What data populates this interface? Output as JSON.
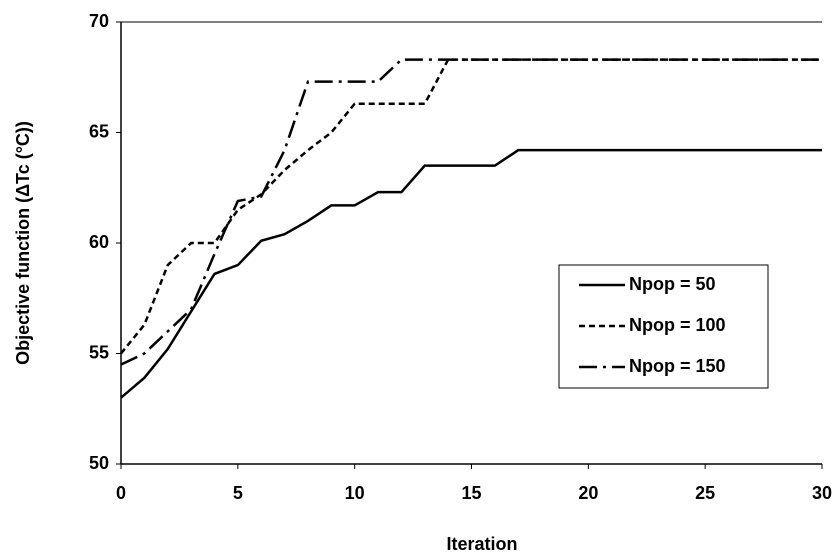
{
  "chart_data": {
    "type": "line",
    "xlabel": "Iteration",
    "ylabel": "Objective function (ΔTc (°C))",
    "x": [
      0,
      1,
      2,
      3,
      4,
      5,
      6,
      7,
      8,
      9,
      10,
      11,
      12,
      13,
      14,
      15,
      16,
      17,
      18,
      19,
      20,
      21,
      22,
      23,
      24,
      25,
      26,
      27,
      28,
      29,
      30
    ],
    "series": [
      {
        "name": "Npop = 50",
        "color": "#000000",
        "dash": "solid",
        "values": [
          53.0,
          53.9,
          55.2,
          56.9,
          58.6,
          59.0,
          60.1,
          60.4,
          61.0,
          61.7,
          61.7,
          62.3,
          62.3,
          63.5,
          63.5,
          63.5,
          63.5,
          64.2,
          64.2,
          64.2,
          64.2,
          64.2,
          64.2,
          64.2,
          64.2,
          64.2,
          64.2,
          64.2,
          64.2,
          64.2,
          64.2
        ]
      },
      {
        "name": "Npop = 100",
        "color": "#000000",
        "dash": "dashed",
        "values": [
          55.0,
          56.3,
          59.0,
          60.0,
          60.0,
          61.5,
          62.2,
          63.3,
          64.2,
          65.0,
          66.3,
          66.3,
          66.3,
          66.3,
          68.3,
          68.3,
          68.3,
          68.3,
          68.3,
          68.3,
          68.3,
          68.3,
          68.3,
          68.3,
          68.3,
          68.3,
          68.3,
          68.3,
          68.3,
          68.3,
          68.3
        ]
      },
      {
        "name": "Npop = 150",
        "color": "#000000",
        "dash": "dashdot",
        "values": [
          54.5,
          55.0,
          56.0,
          57.0,
          59.5,
          61.9,
          62.1,
          64.2,
          67.3,
          67.3,
          67.3,
          67.3,
          68.3,
          68.3,
          68.3,
          68.3,
          68.3,
          68.3,
          68.3,
          68.3,
          68.3,
          68.3,
          68.3,
          68.3,
          68.3,
          68.3,
          68.3,
          68.3,
          68.3,
          68.3,
          68.3
        ]
      }
    ],
    "xlim": [
      0,
      30
    ],
    "xticks": [
      0,
      5,
      10,
      15,
      20,
      25,
      30
    ],
    "ylim": [
      50,
      70
    ],
    "yticks": [
      50,
      55,
      60,
      65,
      70
    ],
    "grid": false,
    "legend": "right"
  }
}
